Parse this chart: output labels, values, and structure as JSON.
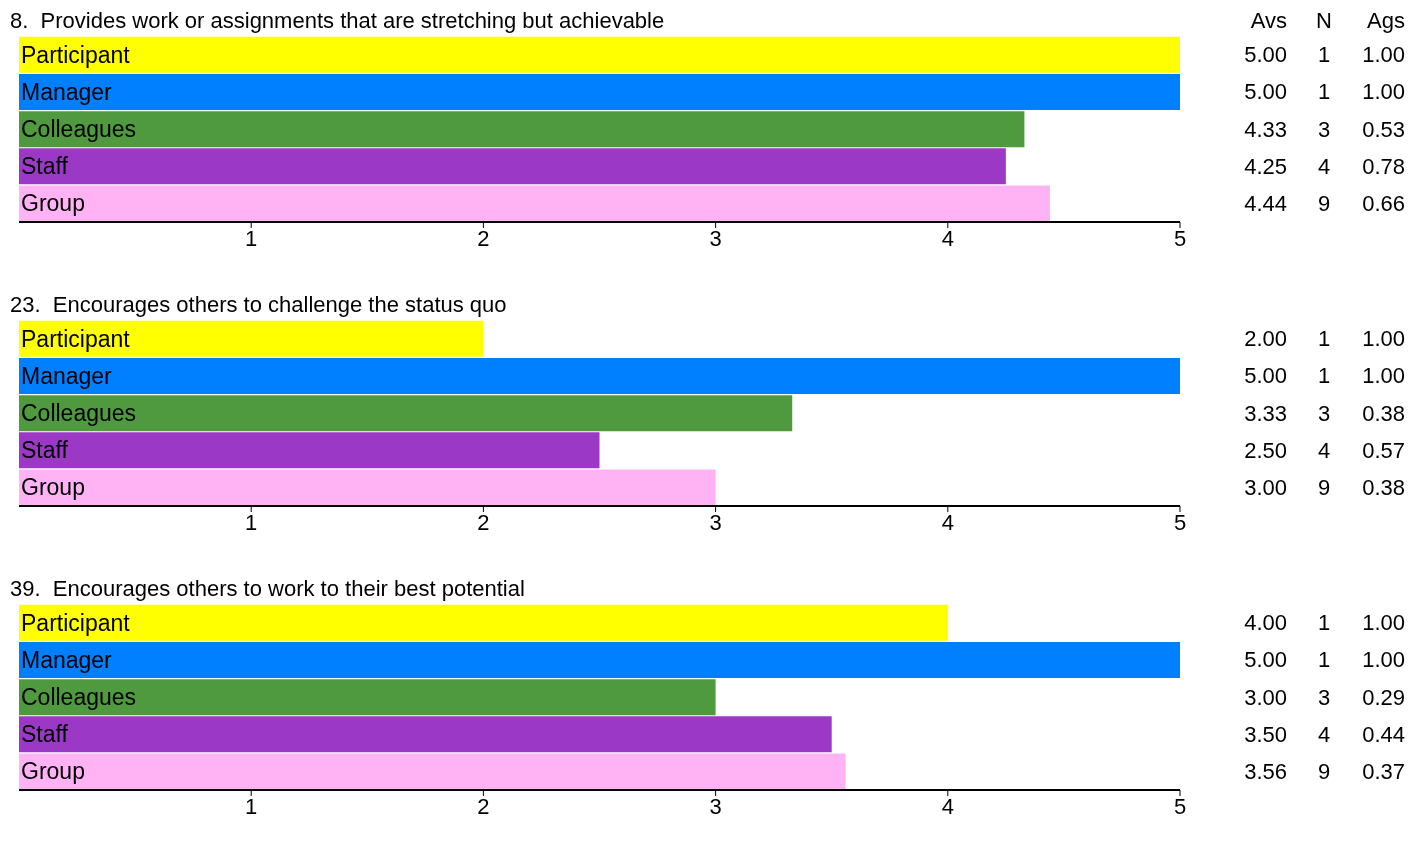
{
  "chart_data": [
    {
      "type": "bar",
      "orientation": "horizontal",
      "title": "8.  Provides work or assignments that are stretching but achievable",
      "annotations": [
        "Avs   N   Ags"
      ],
      "categories": [
        "Participant",
        "Manager",
        "Colleagues",
        "Staff",
        "Group"
      ],
      "values": [
        5,
        5,
        4.33,
        4.25,
        4.44
      ],
      "colors": [
        "#ffff00",
        "#0080ff",
        "#4f9a3f",
        "#9b39c6",
        "#ffb3f5"
      ],
      "value_labels": [
        "5.00   1   1.00",
        "5.00   1   1.00",
        "4.33   3   0.53",
        "4.25   4   0.78",
        "4.44   9   0.66"
      ],
      "xlim": [
        0,
        5
      ],
      "xticks": [
        1,
        2,
        3,
        4,
        5
      ]
    },
    {
      "type": "bar",
      "orientation": "horizontal",
      "title": "23.  Encourages others to challenge the status quo",
      "categories": [
        "Participant",
        "Manager",
        "Colleagues",
        "Staff",
        "Group"
      ],
      "values": [
        2,
        5,
        3.33,
        2.5,
        3
      ],
      "colors": [
        "#ffff00",
        "#0080ff",
        "#4f9a3f",
        "#9b39c6",
        "#ffb3f5"
      ],
      "value_labels": [
        "2.00   1   1.00",
        "5.00   1   1.00",
        "3.33   3   0.38",
        "2.50   4   0.57",
        "3.00   9   0.38"
      ],
      "xlim": [
        0,
        5
      ],
      "xticks": [
        1,
        2,
        3,
        4,
        5
      ]
    },
    {
      "type": "bar",
      "orientation": "horizontal",
      "title": "39.  Encourages others to work to their best potential",
      "categories": [
        "Participant",
        "Manager",
        "Colleagues",
        "Staff",
        "Group"
      ],
      "values": [
        4,
        5,
        3,
        3.5,
        3.56
      ],
      "colors": [
        "#ffff00",
        "#0080ff",
        "#4f9a3f",
        "#9b39c6",
        "#ffb3f5"
      ],
      "value_labels": [
        "4.00   1   1.00",
        "5.00   1   1.00",
        "3.00   3   0.29",
        "3.50   4   0.44",
        "3.56   9   0.37"
      ],
      "xlim": [
        0,
        5
      ],
      "xticks": [
        1,
        2,
        3,
        4,
        5
      ]
    }
  ]
}
